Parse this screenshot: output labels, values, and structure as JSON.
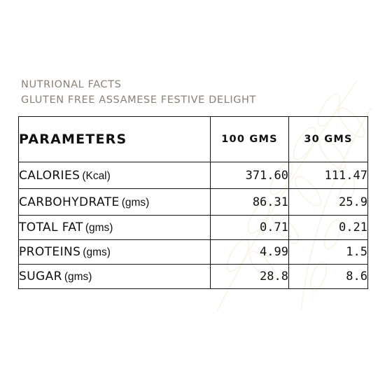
{
  "header": {
    "line1": "NUTRIONAL FACTS",
    "line2": "GLUTEN FREE ASSAMESE FESTIVE DELIGHT"
  },
  "table": {
    "columns": [
      "PARAMETERS",
      "100 GMS",
      "30 GMS"
    ],
    "rows": [
      {
        "name": "CALORIES",
        "unit": "(Kcal)",
        "v100": "371.60",
        "v30": "111.47"
      },
      {
        "name": "CARBOHYDRATE",
        "unit": "(gms)",
        "v100": "86.31",
        "v30": "25.9"
      },
      {
        "name": "TOTAL FAT",
        "unit": "(gms)",
        "v100": "0.71",
        "v30": "0.21"
      },
      {
        "name": "PROTEINS",
        "unit": "(gms)",
        "v100": "4.99",
        "v30": "1.5"
      },
      {
        "name": "SUGAR",
        "unit": "(gms)",
        "v100": "28.8",
        "v30": "8.6"
      }
    ]
  },
  "colors": {
    "heading": "#8a8178",
    "text": "#111111",
    "watermark": "#e2c98c"
  },
  "watermark_icon": "wheat-watermark-icon"
}
